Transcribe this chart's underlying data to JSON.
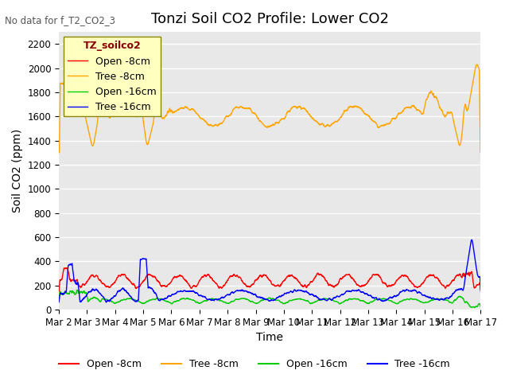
{
  "title": "Tonzi Soil CO2 Profile: Lower CO2",
  "no_data_text": "No data for f_T2_CO2_3",
  "ylabel": "Soil CO2 (ppm)",
  "xlabel": "Time",
  "ylim": [
    0,
    2300
  ],
  "yticks": [
    0,
    200,
    400,
    600,
    800,
    1000,
    1200,
    1400,
    1600,
    1800,
    2000,
    2200
  ],
  "x_tick_labels": [
    "Mar 2",
    "Mar 3",
    "Mar 4",
    "Mar 5",
    "Mar 6",
    "Mar 7",
    "Mar 8",
    "Mar 9",
    "Mar 10",
    "Mar 11",
    "Mar 12",
    "Mar 13",
    "Mar 14",
    "Mar 15",
    "Mar 16",
    "Mar 17"
  ],
  "legend_label": "TZ_soilco2",
  "legend_entries": [
    "Open -8cm",
    "Tree -8cm",
    "Open -16cm",
    "Tree -16cm"
  ],
  "legend_colors": [
    "#ff0000",
    "#ffa500",
    "#00cc00",
    "#0000ff"
  ],
  "bg_color": "#e8e8e8",
  "grid_color": "#ffffff",
  "title_fontsize": 13,
  "axis_fontsize": 10,
  "tick_fontsize": 8.5
}
